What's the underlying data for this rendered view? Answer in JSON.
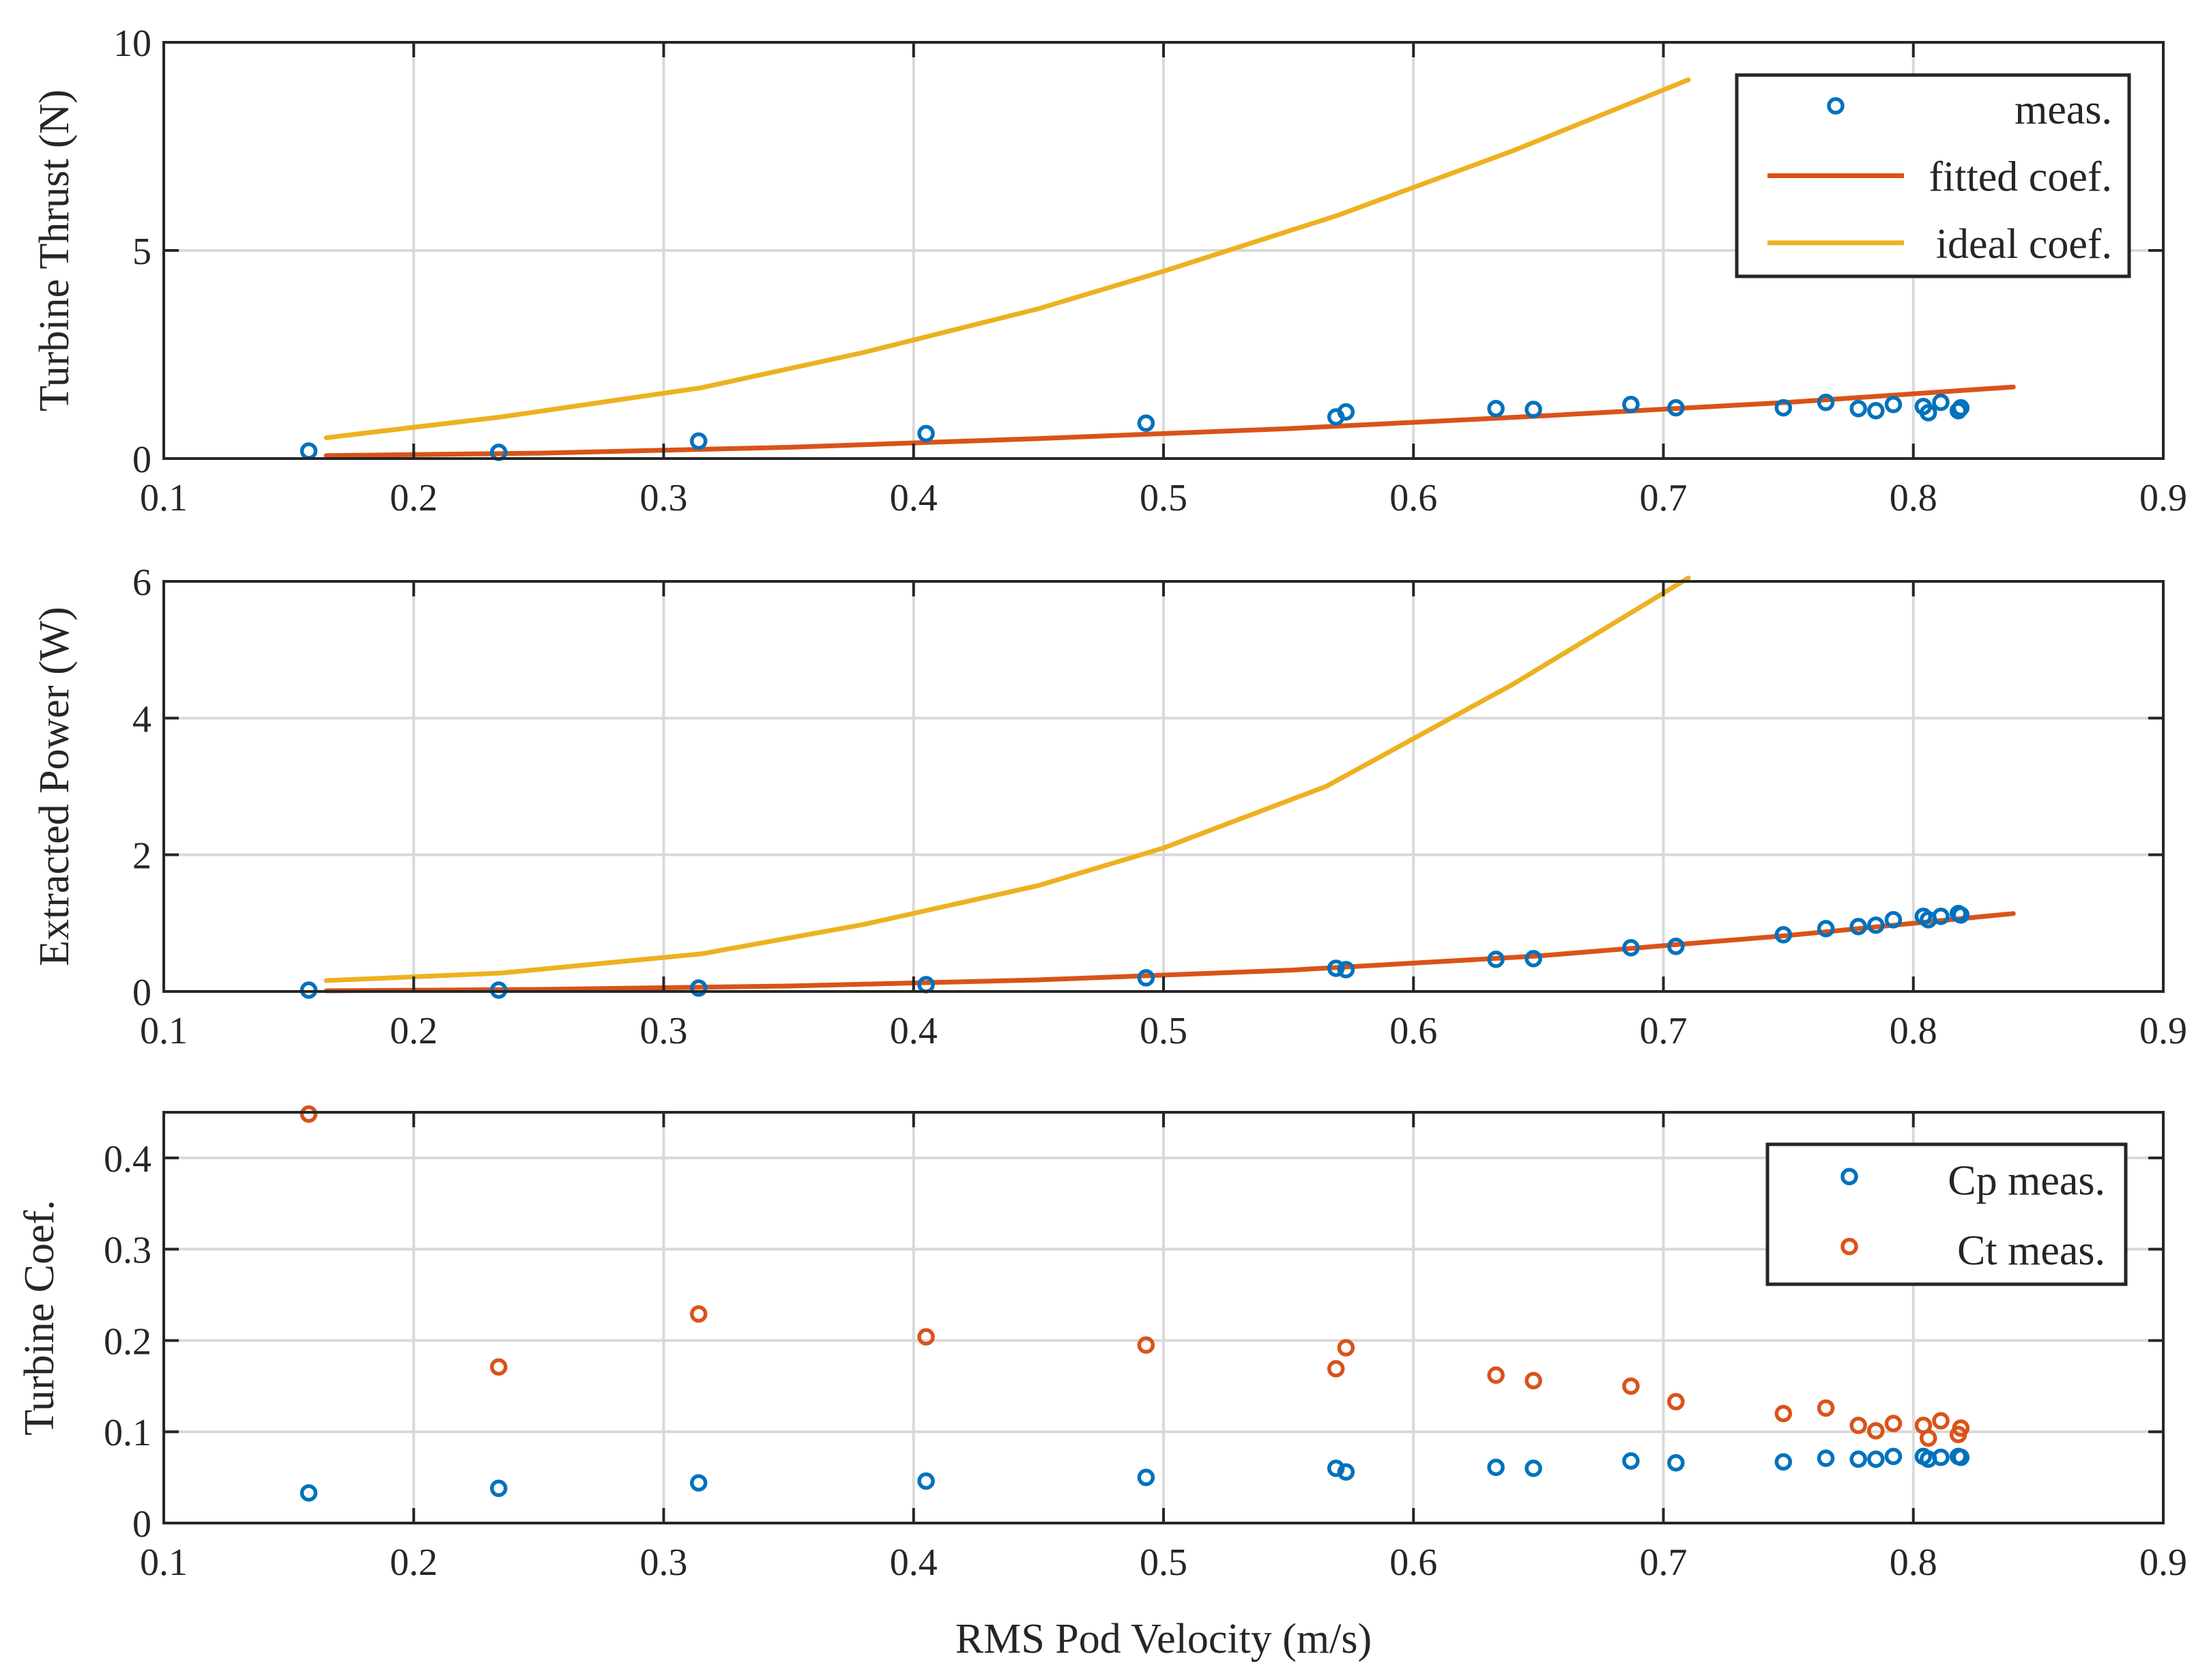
{
  "colors": {
    "blue": "#0072BD",
    "orange": "#D95319",
    "yellow": "#EDB120",
    "grid": "#d9d9d9",
    "axis": "#262626"
  },
  "chart_data": [
    {
      "type": "scatter",
      "name": "thrust",
      "ylabel": "Turbine Thrust (N)",
      "xlabel": "",
      "xlim": [
        0.1,
        0.9
      ],
      "ylim": [
        0,
        10
      ],
      "xticks": [
        0.1,
        0.2,
        0.3,
        0.4,
        0.5,
        0.6,
        0.7,
        0.8,
        0.9
      ],
      "xtick_labels": [
        "0.1",
        "0.2",
        "0.3",
        "0.4",
        "0.5",
        "0.6",
        "0.7",
        "0.8",
        "0.9"
      ],
      "yticks": [
        0,
        5,
        10
      ],
      "ytick_labels": [
        "0",
        "5",
        "10"
      ],
      "grid": true,
      "legend": {
        "position": "top-right",
        "entries": [
          "meas.",
          "fitted coef.",
          "ideal coef."
        ]
      },
      "series": [
        {
          "name": "meas.",
          "style": "marker",
          "color": "blue",
          "x": [
            0.158,
            0.234,
            0.314,
            0.405,
            0.493,
            0.569,
            0.573,
            0.633,
            0.648,
            0.687,
            0.705,
            0.748,
            0.765,
            0.778,
            0.785,
            0.792,
            0.804,
            0.806,
            0.811,
            0.818,
            0.819
          ],
          "y": [
            0.18,
            0.15,
            0.42,
            0.6,
            0.85,
            1.0,
            1.12,
            1.2,
            1.18,
            1.3,
            1.22,
            1.22,
            1.35,
            1.2,
            1.15,
            1.3,
            1.25,
            1.1,
            1.35,
            1.15,
            1.22
          ]
        },
        {
          "name": "fitted coef.",
          "style": "line",
          "color": "orange",
          "x": [
            0.165,
            0.25,
            0.35,
            0.45,
            0.55,
            0.65,
            0.75,
            0.84
          ],
          "y": [
            0.07,
            0.13,
            0.27,
            0.48,
            0.72,
            1.02,
            1.35,
            1.72
          ]
        },
        {
          "name": "ideal coef.",
          "style": "line",
          "color": "yellow",
          "x": [
            0.165,
            0.235,
            0.315,
            0.38,
            0.45,
            0.5,
            0.57,
            0.64,
            0.71
          ],
          "y": [
            0.5,
            1.0,
            1.7,
            2.55,
            3.6,
            4.5,
            5.85,
            7.4,
            9.1
          ]
        }
      ]
    },
    {
      "type": "scatter",
      "name": "power",
      "ylabel": "Extracted Power (W)",
      "xlabel": "",
      "xlim": [
        0.1,
        0.9
      ],
      "ylim": [
        0,
        6
      ],
      "xticks": [
        0.1,
        0.2,
        0.3,
        0.4,
        0.5,
        0.6,
        0.7,
        0.8,
        0.9
      ],
      "xtick_labels": [
        "0.1",
        "0.2",
        "0.3",
        "0.4",
        "0.5",
        "0.6",
        "0.7",
        "0.8",
        "0.9"
      ],
      "yticks": [
        0,
        2,
        4,
        6
      ],
      "ytick_labels": [
        "0",
        "2",
        "4",
        "6"
      ],
      "grid": true,
      "legend": null,
      "series": [
        {
          "name": "meas.",
          "style": "marker",
          "color": "blue",
          "x": [
            0.158,
            0.234,
            0.314,
            0.405,
            0.493,
            0.569,
            0.573,
            0.633,
            0.648,
            0.687,
            0.705,
            0.748,
            0.765,
            0.778,
            0.785,
            0.792,
            0.804,
            0.806,
            0.811,
            0.818,
            0.819
          ],
          "y": [
            0.02,
            0.02,
            0.05,
            0.1,
            0.2,
            0.34,
            0.32,
            0.47,
            0.48,
            0.64,
            0.66,
            0.83,
            0.92,
            0.95,
            0.97,
            1.05,
            1.1,
            1.05,
            1.1,
            1.14,
            1.12
          ]
        },
        {
          "name": "fitted coef.",
          "style": "line",
          "color": "orange",
          "x": [
            0.165,
            0.25,
            0.35,
            0.45,
            0.55,
            0.65,
            0.75,
            0.84
          ],
          "y": [
            0.01,
            0.03,
            0.08,
            0.17,
            0.31,
            0.52,
            0.82,
            1.14
          ]
        },
        {
          "name": "ideal coef.",
          "style": "line",
          "color": "yellow",
          "x": [
            0.165,
            0.235,
            0.315,
            0.38,
            0.45,
            0.5,
            0.565,
            0.64,
            0.71
          ],
          "y": [
            0.16,
            0.27,
            0.55,
            0.98,
            1.55,
            2.1,
            3.0,
            4.5,
            6.05
          ]
        }
      ]
    },
    {
      "type": "scatter",
      "name": "coefficients",
      "ylabel": "Turbine Coef.",
      "xlabel": "RMS Pod Velocity (m/s)",
      "xlim": [
        0.1,
        0.9
      ],
      "ylim": [
        0,
        0.45
      ],
      "xticks": [
        0.1,
        0.2,
        0.3,
        0.4,
        0.5,
        0.6,
        0.7,
        0.8,
        0.9
      ],
      "xtick_labels": [
        "0.1",
        "0.2",
        "0.3",
        "0.4",
        "0.5",
        "0.6",
        "0.7",
        "0.8",
        "0.9"
      ],
      "yticks": [
        0,
        0.1,
        0.2,
        0.3,
        0.4
      ],
      "ytick_labels": [
        "0",
        "0.1",
        "0.2",
        "0.3",
        "0.4"
      ],
      "grid": true,
      "legend": {
        "position": "right",
        "entries": [
          "Cp meas.",
          "Ct meas."
        ]
      },
      "series": [
        {
          "name": "Cp meas.",
          "style": "marker",
          "color": "blue",
          "x": [
            0.158,
            0.234,
            0.314,
            0.405,
            0.493,
            0.569,
            0.573,
            0.633,
            0.648,
            0.687,
            0.705,
            0.748,
            0.765,
            0.778,
            0.785,
            0.792,
            0.804,
            0.806,
            0.811,
            0.818,
            0.819
          ],
          "y": [
            0.033,
            0.038,
            0.044,
            0.046,
            0.05,
            0.06,
            0.056,
            0.061,
            0.06,
            0.068,
            0.066,
            0.067,
            0.071,
            0.07,
            0.07,
            0.073,
            0.073,
            0.07,
            0.072,
            0.073,
            0.072
          ]
        },
        {
          "name": "Ct meas.",
          "style": "marker",
          "color": "orange",
          "x": [
            0.158,
            0.234,
            0.314,
            0.405,
            0.493,
            0.569,
            0.573,
            0.633,
            0.648,
            0.687,
            0.705,
            0.748,
            0.765,
            0.778,
            0.785,
            0.792,
            0.804,
            0.806,
            0.811,
            0.818,
            0.819
          ],
          "y": [
            0.448,
            0.171,
            0.229,
            0.204,
            0.195,
            0.169,
            0.192,
            0.162,
            0.156,
            0.15,
            0.133,
            0.12,
            0.126,
            0.107,
            0.101,
            0.109,
            0.107,
            0.093,
            0.112,
            0.097,
            0.104
          ]
        }
      ]
    }
  ]
}
